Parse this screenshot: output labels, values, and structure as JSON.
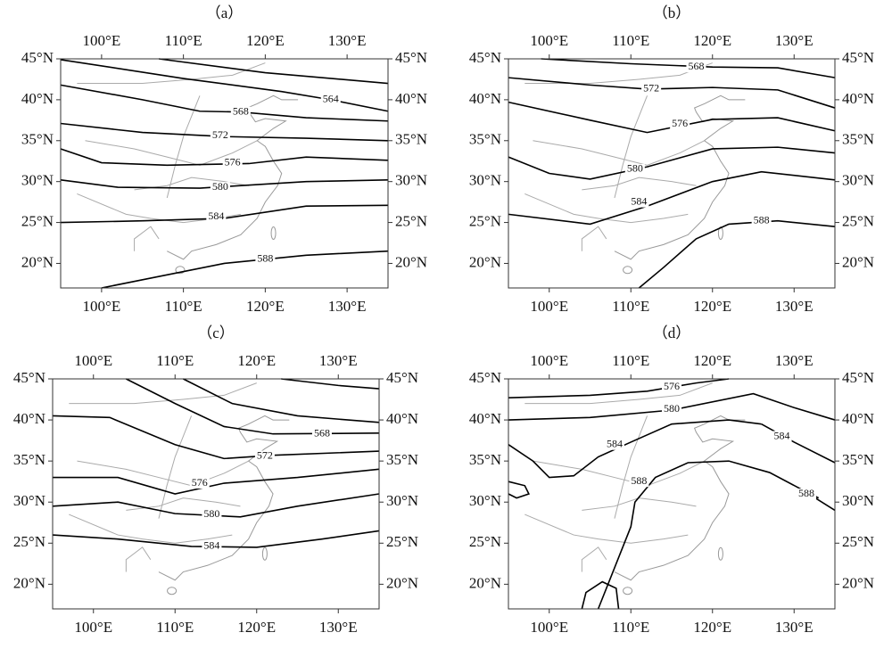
{
  "axes": {
    "xticks": [
      "100°E",
      "110°E",
      "120°E",
      "130°E"
    ],
    "yticks": [
      "45°N",
      "40°N",
      "35°N",
      "30°N",
      "25°N",
      "20°N"
    ]
  },
  "panels": [
    {
      "label": "（a）",
      "contours": [
        {
          "label": "564"
        },
        {
          "label": "568"
        },
        {
          "label": "572"
        },
        {
          "label": "576"
        },
        {
          "label": "580"
        },
        {
          "label": "584"
        },
        {
          "label": "588"
        }
      ]
    },
    {
      "label": "（b）",
      "contours": [
        {
          "label": "568"
        },
        {
          "label": "572"
        },
        {
          "label": "576"
        },
        {
          "label": "580"
        },
        {
          "label": "584"
        },
        {
          "label": "588"
        }
      ]
    },
    {
      "label": "（c）",
      "contours": [
        {
          "label": "568"
        },
        {
          "label": "572"
        },
        {
          "label": "576"
        },
        {
          "label": "580"
        },
        {
          "label": "584"
        }
      ]
    },
    {
      "label": "（d）",
      "contours": [
        {
          "label": "576"
        },
        {
          "label": "580"
        },
        {
          "label": "584"
        },
        {
          "label": "584"
        },
        {
          "label": "588"
        },
        {
          "label": "588"
        }
      ]
    }
  ]
}
